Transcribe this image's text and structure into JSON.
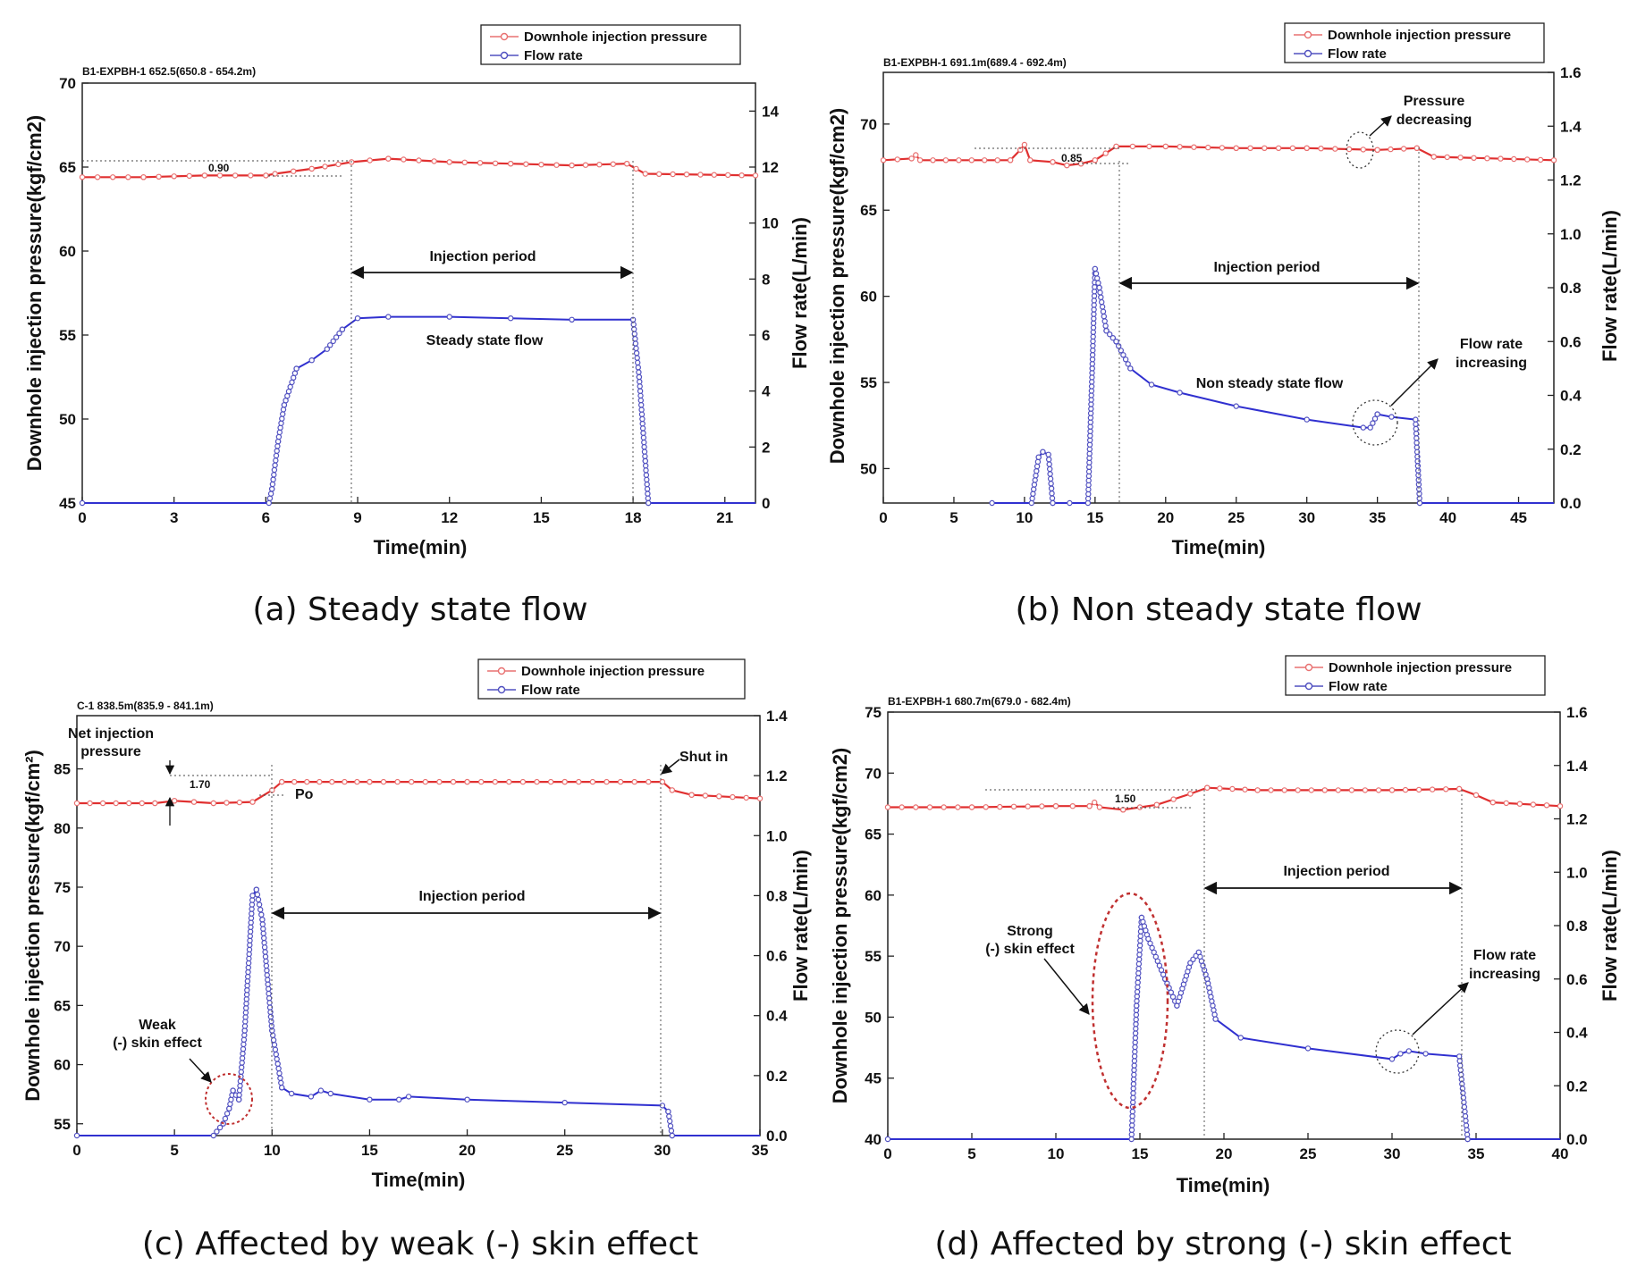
{
  "colors": {
    "pressure": "#e03030",
    "pressure_marker": "#e87070",
    "flow": "#3030d0",
    "flow_marker": "#5050c0",
    "skin_circle": "#c03030"
  },
  "legend": {
    "pressure": "Downhole injection pressure",
    "flow": "Flow rate"
  },
  "chart_data": [
    {
      "type": "line",
      "caption": "(a) Steady state flow",
      "well_label": "B1-EXPBH-1 652.5(650.8 - 654.2m)",
      "xlabel": "Time(min)",
      "ylabel": "Downhole injection pressure(kgf/cm2)",
      "y2label": "Flow rate(L/min)",
      "xlim": [
        0,
        22
      ],
      "xticks": [
        0,
        3,
        6,
        9,
        12,
        15,
        18,
        21
      ],
      "ylim": [
        45,
        70
      ],
      "yticks": [
        45,
        50,
        55,
        60,
        65,
        70
      ],
      "y2lim": [
        0,
        15
      ],
      "y2ticks": [
        0,
        2,
        4,
        6,
        8,
        10,
        12,
        14
      ],
      "series": [
        {
          "name": "Downhole injection pressure",
          "axis": "left",
          "points": [
            [
              0,
              64.4
            ],
            [
              2,
              64.4
            ],
            [
              4,
              64.5
            ],
            [
              6,
              64.5
            ],
            [
              6.3,
              64.6
            ],
            [
              7.5,
              64.9
            ],
            [
              8.8,
              65.3
            ],
            [
              10,
              65.5
            ],
            [
              12,
              65.3
            ],
            [
              14,
              65.2
            ],
            [
              16,
              65.1
            ],
            [
              17.8,
              65.2
            ],
            [
              18.1,
              64.9
            ],
            [
              18.4,
              64.6
            ],
            [
              22,
              64.5
            ]
          ]
        },
        {
          "name": "Flow rate",
          "axis": "right",
          "points": [
            [
              0,
              0
            ],
            [
              6.1,
              0
            ],
            [
              6.2,
              0.5
            ],
            [
              6.4,
              2.2
            ],
            [
              6.6,
              3.5
            ],
            [
              7,
              4.8
            ],
            [
              7.5,
              5.1
            ],
            [
              8,
              5.5
            ],
            [
              8.5,
              6.2
            ],
            [
              9,
              6.6
            ],
            [
              10,
              6.65
            ],
            [
              12,
              6.65
            ],
            [
              14,
              6.6
            ],
            [
              16,
              6.55
            ],
            [
              18,
              6.55
            ],
            [
              18.2,
              4.5
            ],
            [
              18.4,
              1.5
            ],
            [
              18.5,
              0
            ],
            [
              22,
              0
            ]
          ]
        }
      ],
      "net_pressure_label": "0.90",
      "annotations": {
        "period": "Injection period",
        "flow_note": "Steady state flow"
      }
    },
    {
      "type": "line",
      "caption": "(b) Non steady state flow",
      "well_label": "B1-EXPBH-1 691.1m(689.4 - 692.4m)",
      "xlabel": "Time(min)",
      "ylabel": "Downhole injection pressure(kgf/cm2)",
      "y2label": "Flow rate(L/min)",
      "xlim": [
        0,
        47.5
      ],
      "xticks": [
        0,
        5,
        10,
        15,
        20,
        25,
        30,
        35,
        40,
        45
      ],
      "ylim": [
        48,
        73
      ],
      "yticks": [
        50,
        55,
        60,
        65,
        70
      ],
      "y2lim": [
        0,
        1.6
      ],
      "y2ticks": [
        0.0,
        0.2,
        0.4,
        0.6,
        0.8,
        1.0,
        1.2,
        1.4,
        1.6
      ],
      "series": [
        {
          "name": "Downhole injection pressure",
          "axis": "left",
          "points": [
            [
              0,
              67.9
            ],
            [
              2,
              68
            ],
            [
              2.3,
              68.2
            ],
            [
              2.6,
              67.9
            ],
            [
              9,
              67.9
            ],
            [
              9.7,
              68.5
            ],
            [
              10,
              68.8
            ],
            [
              10.4,
              67.9
            ],
            [
              12,
              67.8
            ],
            [
              13,
              67.6
            ],
            [
              14,
              67.7
            ],
            [
              15,
              67.9
            ],
            [
              16.5,
              68.7
            ],
            [
              20,
              68.7
            ],
            [
              25,
              68.6
            ],
            [
              30,
              68.6
            ],
            [
              35,
              68.5
            ],
            [
              37.8,
              68.6
            ],
            [
              39,
              68.1
            ],
            [
              47.5,
              67.9
            ]
          ]
        },
        {
          "name": "Flow rate",
          "axis": "right",
          "points": [
            [
              7.7,
              0
            ],
            [
              10.5,
              0
            ],
            [
              11,
              0.17
            ],
            [
              11.3,
              0.19
            ],
            [
              11.7,
              0.18
            ],
            [
              12,
              0
            ],
            [
              13.2,
              0
            ],
            [
              14.5,
              0
            ],
            [
              14.8,
              0.5
            ],
            [
              15,
              0.87
            ],
            [
              15.3,
              0.8
            ],
            [
              15.8,
              0.64
            ],
            [
              16.5,
              0.6
            ],
            [
              17.5,
              0.5
            ],
            [
              19,
              0.44
            ],
            [
              21,
              0.41
            ],
            [
              25,
              0.36
            ],
            [
              30,
              0.31
            ],
            [
              34,
              0.28
            ],
            [
              34.5,
              0.28
            ],
            [
              35,
              0.33
            ],
            [
              36,
              0.32
            ],
            [
              37.7,
              0.31
            ],
            [
              38,
              0
            ],
            [
              47.5,
              0
            ]
          ]
        }
      ],
      "net_pressure_label": "0.85",
      "annotations": {
        "period": "Injection period",
        "flow_note": "Non steady state flow",
        "pressure_note_1": "Pressure",
        "pressure_note_2": "decreasing",
        "flow_up_1": "Flow rate",
        "flow_up_2": "increasing"
      }
    },
    {
      "type": "line",
      "caption": "(c) Affected by weak (-) skin effect",
      "well_label": "C-1 838.5m(835.9 - 841.1m)",
      "xlabel": "Time(min)",
      "ylabel": "Downhole injection pressure(kgf/cm²)",
      "y2label": "Flow rate(L/min)",
      "xlim": [
        0,
        35
      ],
      "xticks": [
        0,
        5,
        10,
        15,
        20,
        25,
        30,
        35
      ],
      "ylim": [
        54,
        89.5
      ],
      "yticks": [
        55,
        60,
        65,
        70,
        75,
        80,
        85
      ],
      "y2lim": [
        0,
        1.4
      ],
      "y2ticks": [
        0.0,
        0.2,
        0.4,
        0.6,
        0.8,
        1.0,
        1.2,
        1.4
      ],
      "series": [
        {
          "name": "Downhole injection pressure",
          "axis": "left",
          "points": [
            [
              0,
              82.1
            ],
            [
              4,
              82.1
            ],
            [
              5,
              82.3
            ],
            [
              6,
              82.2
            ],
            [
              7,
              82.1
            ],
            [
              9,
              82.2
            ],
            [
              10,
              83.2
            ],
            [
              10.5,
              83.9
            ],
            [
              15,
              83.9
            ],
            [
              20,
              83.9
            ],
            [
              25,
              83.9
            ],
            [
              30,
              83.9
            ],
            [
              30.5,
              83.2
            ],
            [
              31.5,
              82.8
            ],
            [
              35,
              82.5
            ]
          ]
        },
        {
          "name": "Flow rate",
          "axis": "right",
          "points": [
            [
              0,
              0
            ],
            [
              7,
              0
            ],
            [
              7.5,
              0.04
            ],
            [
              7.8,
              0.09
            ],
            [
              8,
              0.15
            ],
            [
              8.3,
              0.12
            ],
            [
              8.6,
              0.35
            ],
            [
              9,
              0.8
            ],
            [
              9.2,
              0.82
            ],
            [
              9.5,
              0.72
            ],
            [
              10,
              0.35
            ],
            [
              10.5,
              0.16
            ],
            [
              11,
              0.14
            ],
            [
              12,
              0.13
            ],
            [
              12.5,
              0.15
            ],
            [
              13,
              0.14
            ],
            [
              15,
              0.12
            ],
            [
              16.5,
              0.12
            ],
            [
              17,
              0.13
            ],
            [
              20,
              0.12
            ],
            [
              25,
              0.11
            ],
            [
              30,
              0.1
            ],
            [
              30.3,
              0.08
            ],
            [
              30.5,
              0
            ],
            [
              35,
              0
            ]
          ]
        }
      ],
      "net_pressure_label": "1.70",
      "annotations": {
        "period": "Injection period",
        "net_1": "Net injection",
        "net_2": "pressure",
        "po": "Po",
        "shut_in": "Shut in",
        "skin_1": "Weak",
        "skin_2": "(-) skin effect"
      }
    },
    {
      "type": "line",
      "caption": "(d) Affected by strong (-) skin effect",
      "well_label": "B1-EXPBH-1 680.7m(679.0 - 682.4m)",
      "xlabel": "Time(min)",
      "ylabel": "Downhole injection pressure(kgf/cm2)",
      "y2label": "Flow rate(L/min)",
      "xlim": [
        0,
        40
      ],
      "xticks": [
        0,
        5,
        10,
        15,
        20,
        25,
        30,
        35,
        40
      ],
      "ylim": [
        40,
        75
      ],
      "yticks": [
        40,
        45,
        50,
        55,
        60,
        65,
        70,
        75
      ],
      "y2lim": [
        0,
        1.6
      ],
      "y2ticks": [
        0.0,
        0.2,
        0.4,
        0.6,
        0.8,
        1.0,
        1.2,
        1.4,
        1.6
      ],
      "series": [
        {
          "name": "Downhole injection pressure",
          "axis": "left",
          "points": [
            [
              0,
              67.2
            ],
            [
              5,
              67.2
            ],
            [
              10,
              67.3
            ],
            [
              12,
              67.3
            ],
            [
              12.3,
              67.6
            ],
            [
              12.6,
              67.2
            ],
            [
              14,
              67
            ],
            [
              16,
              67.4
            ],
            [
              18,
              68.3
            ],
            [
              19,
              68.8
            ],
            [
              22,
              68.6
            ],
            [
              26,
              68.6
            ],
            [
              30,
              68.6
            ],
            [
              34,
              68.7
            ],
            [
              35,
              68.2
            ],
            [
              36,
              67.6
            ],
            [
              40,
              67.3
            ]
          ]
        },
        {
          "name": "Flow rate",
          "axis": "right",
          "points": [
            [
              0,
              0
            ],
            [
              14.5,
              0
            ],
            [
              14.8,
              0.5
            ],
            [
              15.1,
              0.83
            ],
            [
              15.5,
              0.75
            ],
            [
              16.5,
              0.6
            ],
            [
              17.2,
              0.5
            ],
            [
              18,
              0.66
            ],
            [
              18.5,
              0.7
            ],
            [
              19,
              0.6
            ],
            [
              19.5,
              0.45
            ],
            [
              21,
              0.38
            ],
            [
              25,
              0.34
            ],
            [
              30,
              0.3
            ],
            [
              30.5,
              0.32
            ],
            [
              31,
              0.33
            ],
            [
              32,
              0.32
            ],
            [
              34,
              0.31
            ],
            [
              34.5,
              0
            ],
            [
              40,
              0
            ]
          ]
        }
      ],
      "net_pressure_label": "1.50",
      "annotations": {
        "period": "Injection period",
        "skin_1": "Strong",
        "skin_2": "(-) skin effect",
        "flow_up_1": "Flow rate",
        "flow_up_2": "increasing"
      }
    }
  ]
}
